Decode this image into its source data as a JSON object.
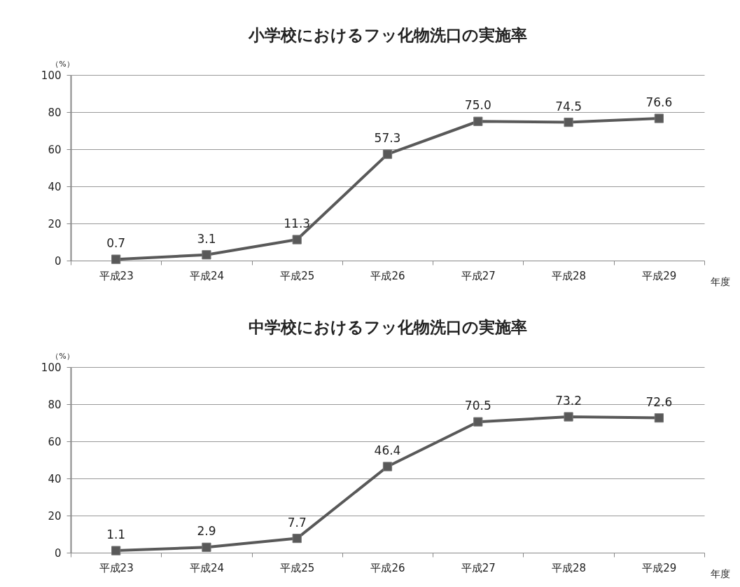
{
  "chart_data": [
    {
      "type": "line",
      "title": "小学校におけるフッ化物洗口の実施率",
      "ylabel": "（%）",
      "xlabel": "年度",
      "categories": [
        "平成23",
        "平成24",
        "平成25",
        "平成26",
        "平成27",
        "平成28",
        "平成29"
      ],
      "series": [
        {
          "color": "#595959",
          "values": [
            0.7,
            3.1,
            11.3,
            57.3,
            75.0,
            74.5,
            76.6
          ],
          "value_labels": [
            "0.7",
            "3.1",
            "11.3",
            "57.3",
            "75.0",
            "74.5",
            "76.6"
          ]
        }
      ],
      "ylim": [
        0,
        100
      ],
      "yticks": [
        0,
        20,
        40,
        60,
        80,
        100
      ],
      "grid": "y",
      "marker": "square",
      "line_style": "solid"
    },
    {
      "type": "line",
      "title": "中学校におけるフッ化物洗口の実施率",
      "ylabel": "（%）",
      "xlabel": "年度",
      "categories": [
        "平成23",
        "平成24",
        "平成25",
        "平成26",
        "平成27",
        "平成28",
        "平成29"
      ],
      "series": [
        {
          "color": "#595959",
          "values": [
            1.1,
            2.9,
            7.7,
            46.4,
            70.5,
            73.2,
            72.6
          ],
          "value_labels": [
            "1.1",
            "2.9",
            "7.7",
            "46.4",
            "70.5",
            "73.2",
            "72.6"
          ]
        }
      ],
      "ylim": [
        0,
        100
      ],
      "yticks": [
        0,
        20,
        40,
        60,
        80,
        100
      ],
      "grid": "y",
      "marker": "square",
      "line_style": "solid"
    }
  ]
}
